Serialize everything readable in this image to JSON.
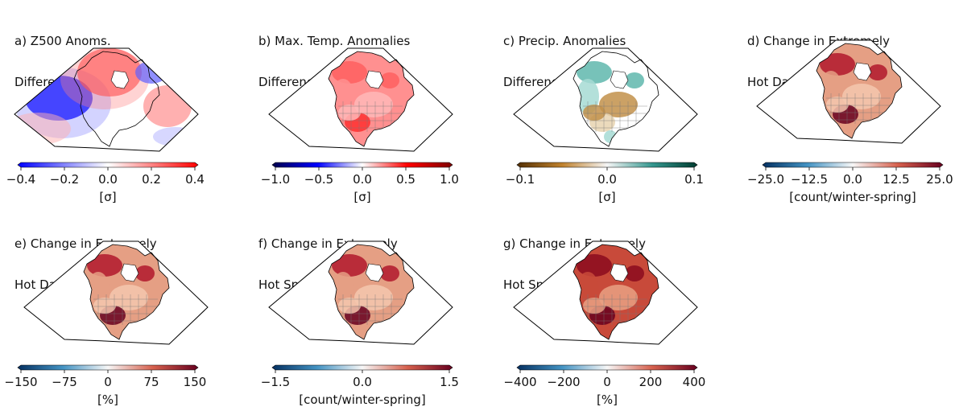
{
  "panels": [
    {
      "id": "a",
      "title1": "a) Z500 Anoms.",
      "title2": "Difference: Present-Past",
      "unit": "[σ]",
      "ticks": [
        "−0.4",
        "−0.2",
        "0.0",
        "0.2",
        "0.4"
      ],
      "cmap": "bwr",
      "map_style": "z500"
    },
    {
      "id": "b",
      "title1": "b) Max. Temp. Anomalies",
      "title2": "Difference: Present-Past",
      "unit": "[σ]",
      "ticks": [
        "−1.0",
        "−0.5",
        "0.0",
        "0.5",
        "1.0"
      ],
      "cmap": "seismic",
      "map_style": "temp"
    },
    {
      "id": "c",
      "title1": "c) Precip. Anomalies",
      "title2": "Difference: Present-Past",
      "unit": "[σ]",
      "ticks": [
        "−0.1",
        "0.0",
        "0.1"
      ],
      "cmap": "BrBG",
      "map_style": "precip"
    },
    {
      "id": "d",
      "title1": "d) Change in Extremely",
      "title2": "Hot Days: Present-Past",
      "unit": "[count/winter-spring]",
      "ticks": [
        "−25.0",
        "−12.5",
        "0.0",
        "12.5",
        "25.0"
      ],
      "cmap": "RdBu_r",
      "map_style": "hot"
    },
    {
      "id": "e",
      "title1": "e) Change in Extremely",
      "title2": "Hot Days: Present-Past",
      "unit": "[%]",
      "ticks": [
        "−150",
        "−75",
        "0",
        "75",
        "150"
      ],
      "cmap": "RdBu_r",
      "map_style": "hot"
    },
    {
      "id": "f",
      "title1": "f) Change in Extremely",
      "title2": "Hot Spells: Present-Past",
      "unit": "[count/winter-spring]",
      "ticks": [
        "−1.5",
        "0.0",
        "1.5"
      ],
      "cmap": "RdBu_r",
      "map_style": "hot"
    },
    {
      "id": "g",
      "title1": "g) Change in Extremely",
      "title2": "Hot Spells: Present-Past",
      "unit": "[%]",
      "ticks": [
        "−400",
        "−200",
        "0",
        "200",
        "400"
      ],
      "cmap": "RdBu_r",
      "map_style": "hot2"
    }
  ]
}
